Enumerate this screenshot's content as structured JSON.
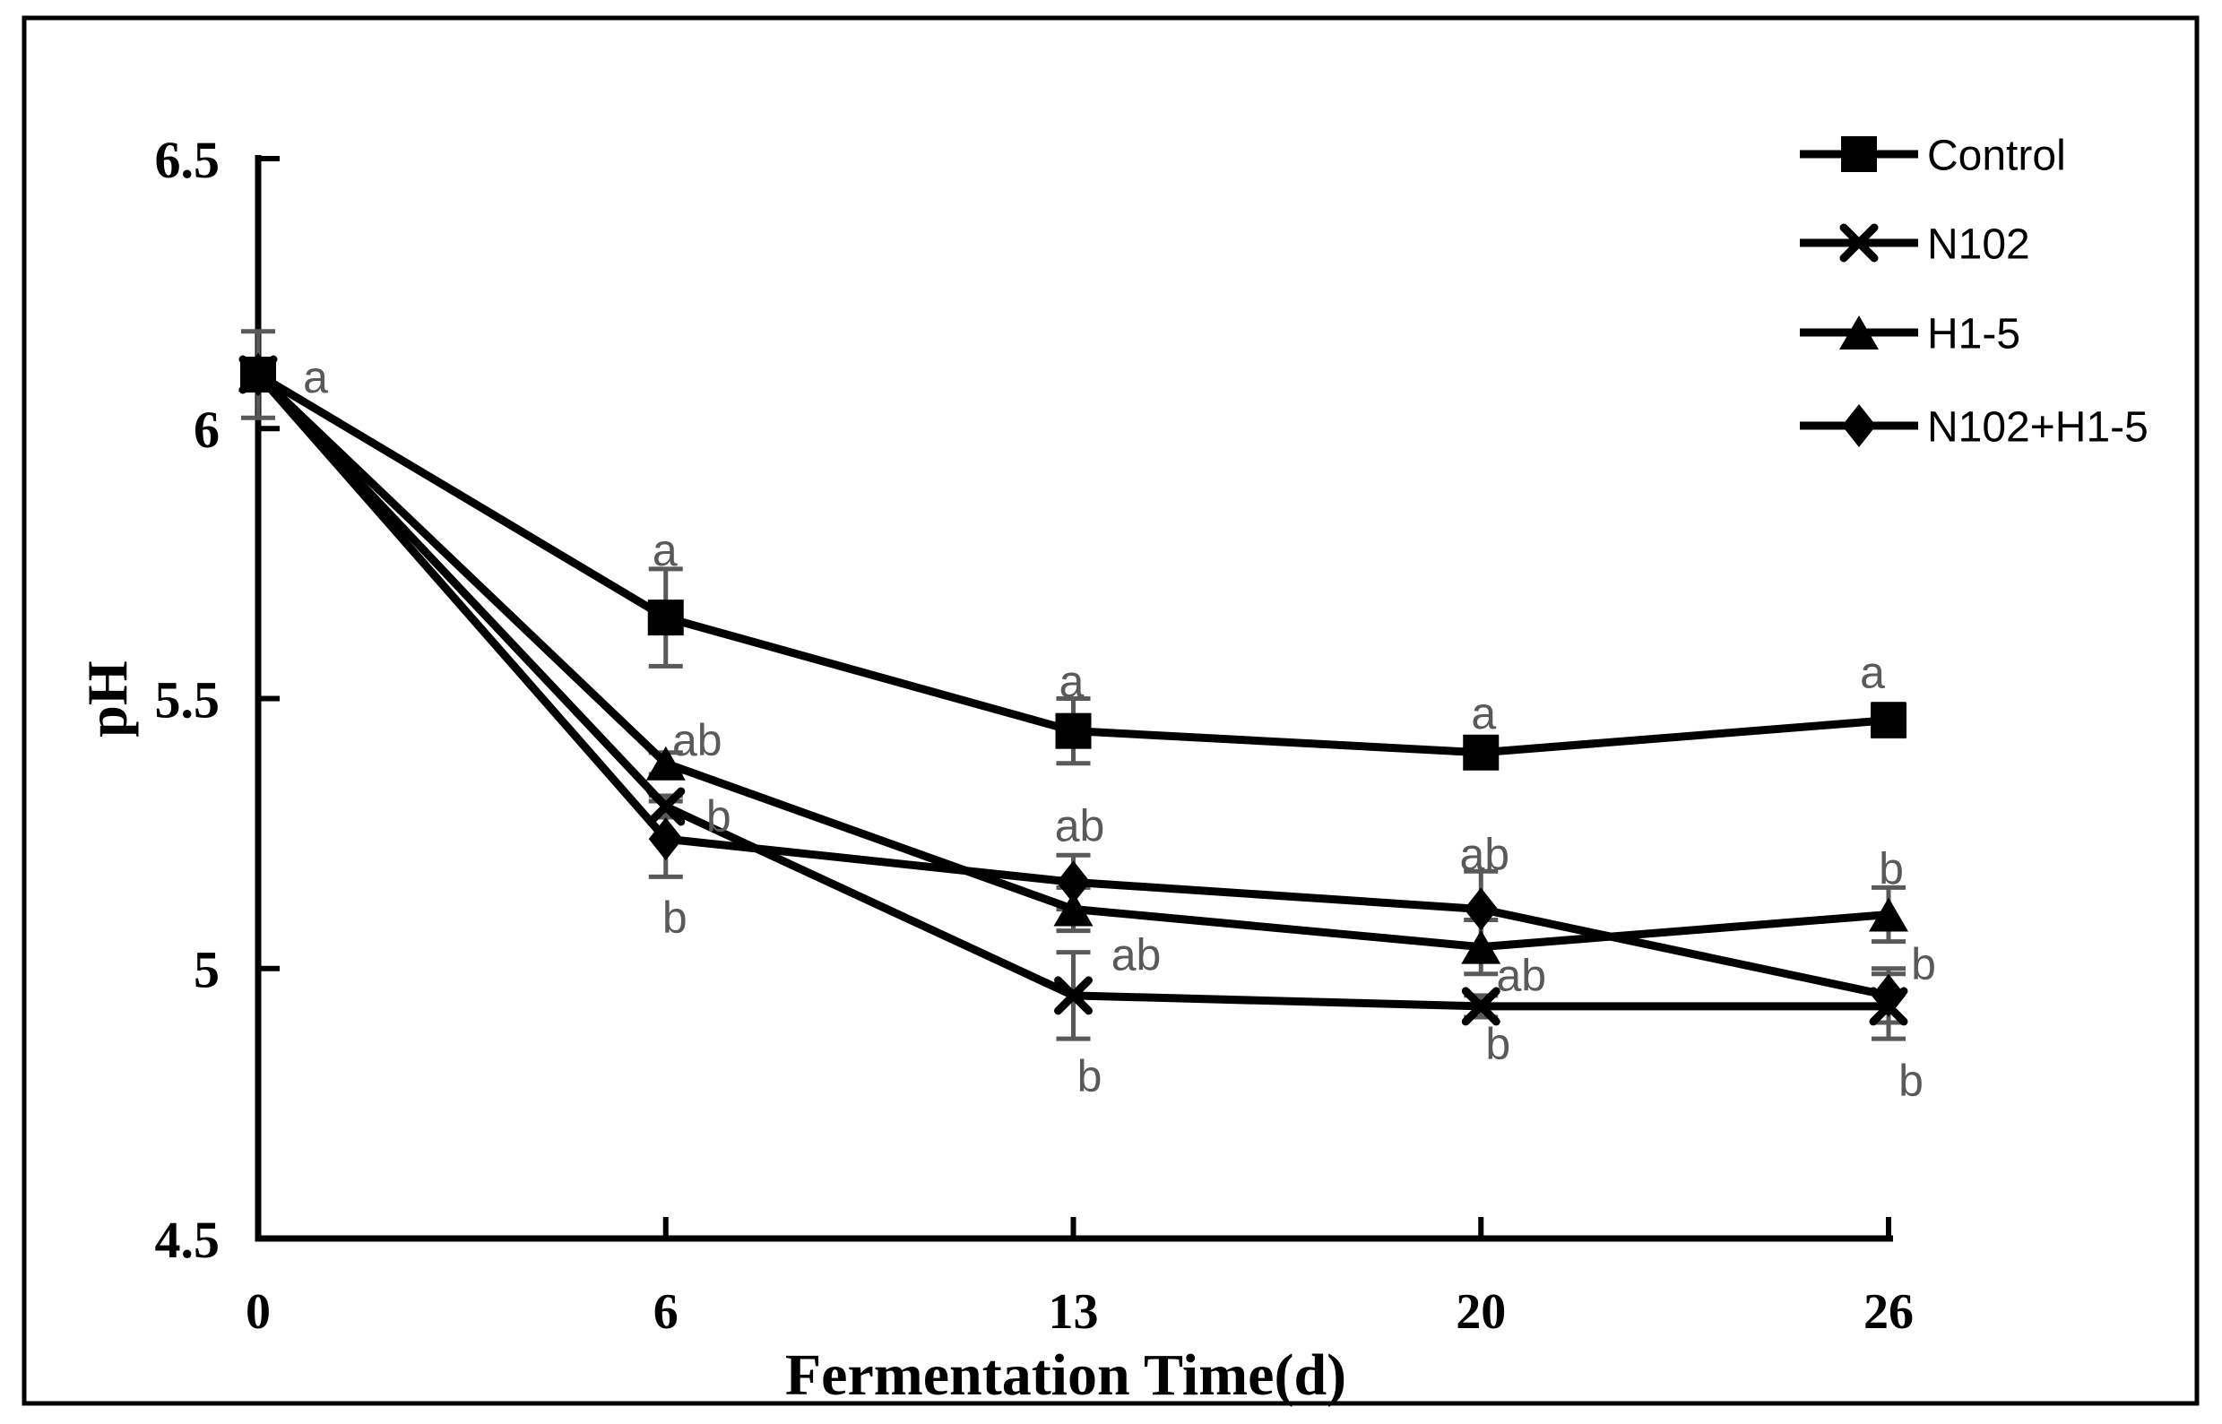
{
  "chart_data": {
    "type": "line",
    "title": "",
    "xlabel": "Fermentation Time(d)",
    "ylabel": "pH",
    "x_categories": [
      "0",
      "6",
      "13",
      "20",
      "26"
    ],
    "y_ticks": [
      "6.5",
      "6",
      "5.5",
      "5",
      "4.5"
    ],
    "ylim": [
      4.5,
      6.5
    ],
    "grid": false,
    "legend_position": "top-right",
    "series": [
      {
        "name": "Control",
        "marker": "square",
        "values": [
          6.1,
          5.65,
          5.44,
          5.4,
          5.46
        ],
        "errors": [
          0.08,
          0.09,
          0.06,
          0.02,
          0.03
        ],
        "letters": [
          "a",
          "a",
          "a",
          "a",
          "a"
        ]
      },
      {
        "name": "N102",
        "marker": "x",
        "values": [
          6.1,
          5.3,
          4.95,
          4.93,
          4.93
        ],
        "errors": [
          0,
          0.02,
          0.08,
          0.02,
          0.06
        ],
        "letters": [
          "",
          "b",
          "b",
          "b",
          "b"
        ]
      },
      {
        "name": "H1-5",
        "marker": "triangle",
        "values": [
          6.1,
          5.38,
          5.11,
          5.04,
          5.1
        ],
        "errors": [
          0,
          0.02,
          0.04,
          0.05,
          0.05
        ],
        "letters": [
          "",
          "ab",
          "ab",
          "ab",
          "b"
        ]
      },
      {
        "name": "N102+H1-5",
        "marker": "diamond",
        "values": [
          6.1,
          5.24,
          5.16,
          5.11,
          4.95
        ],
        "errors": [
          0,
          0.07,
          0.05,
          0.07,
          0.05
        ],
        "letters": [
          "",
          "b",
          "ab",
          "ab",
          "b"
        ]
      }
    ],
    "colors": {
      "series_line": "#000000",
      "marker": "#000000",
      "error_bar": "#595959",
      "sig_letter": "#595959",
      "axis": "#000000",
      "frame": "#000000",
      "background": "#ffffff"
    }
  }
}
